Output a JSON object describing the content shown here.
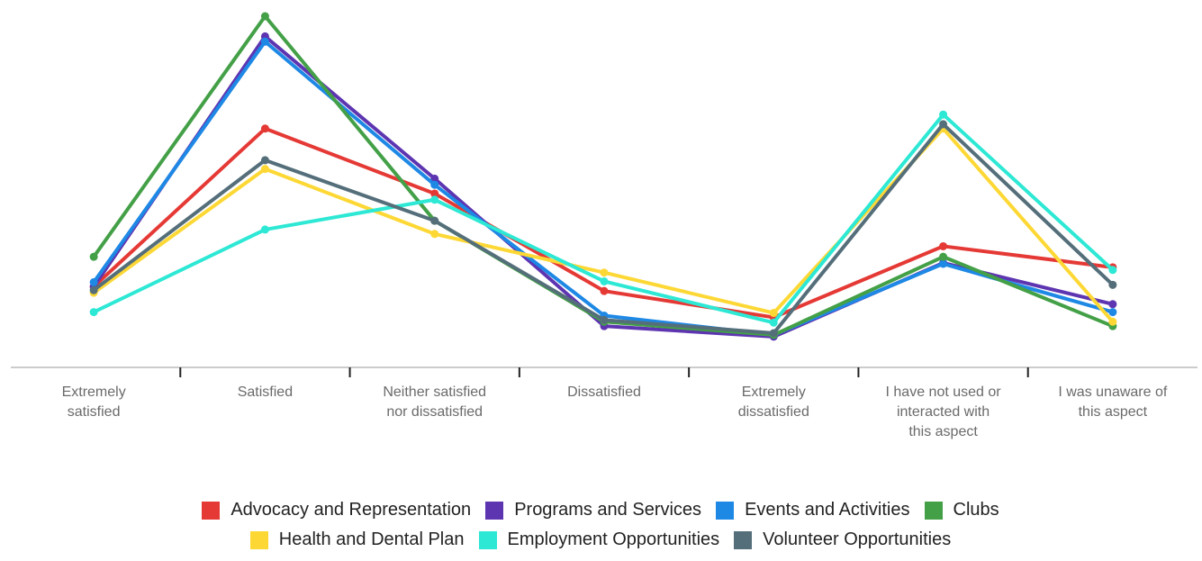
{
  "chart_data": {
    "type": "line",
    "categories": [
      "Extremely satisfied",
      "Satisfied",
      "Neither satisfied nor dissatisfied",
      "Dissatisfied",
      "Extremely dissatisfied",
      "I have not used or interacted with this aspect",
      "I was unaware of this aspect"
    ],
    "ylim": [
      0,
      40
    ],
    "grid": false,
    "legend": "bottom",
    "series": [
      {
        "name": "Advocacy and Representation",
        "color": "#e53935",
        "values": [
          9.2,
          27.2,
          19.8,
          8.7,
          5.7,
          13.8,
          11.4
        ]
      },
      {
        "name": "Programs and Services",
        "color": "#5e35b1",
        "values": [
          9.2,
          37.7,
          21.5,
          4.7,
          3.5,
          11.9,
          7.2
        ]
      },
      {
        "name": "Events and Activities",
        "color": "#1e88e5",
        "values": [
          9.7,
          37.1,
          20.8,
          5.9,
          3.7,
          11.8,
          6.3
        ]
      },
      {
        "name": "Clubs",
        "color": "#43a047",
        "values": [
          12.6,
          40,
          16.7,
          5.2,
          3.7,
          12.6,
          4.7
        ]
      },
      {
        "name": "Health and Dental Plan",
        "color": "#fdd835",
        "values": [
          8.5,
          22.6,
          15.2,
          10.8,
          6.2,
          27.2,
          5.2
        ]
      },
      {
        "name": "Employment Opportunities",
        "color": "#2de8d4",
        "values": [
          6.3,
          15.7,
          19.1,
          9.8,
          5.1,
          28.8,
          11.1
        ]
      },
      {
        "name": "Volunteer Opportunities",
        "color": "#546e7a",
        "values": [
          8.8,
          23.6,
          16.7,
          5.4,
          3.9,
          27.7,
          9.4
        ]
      }
    ]
  }
}
